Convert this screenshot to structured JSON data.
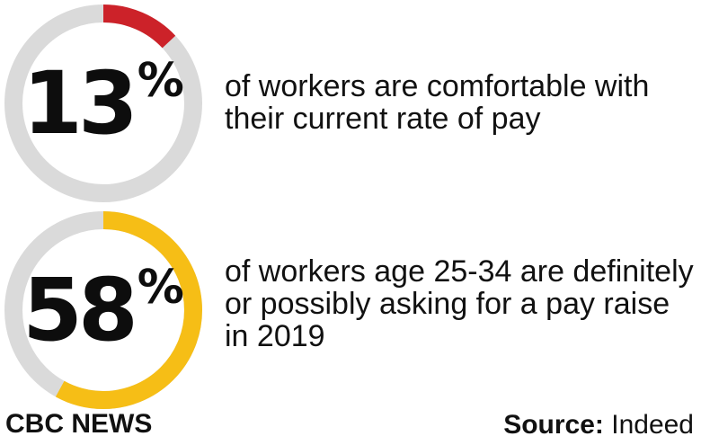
{
  "chart_data": [
    {
      "type": "pie",
      "value_percent": 13,
      "value_text": "13",
      "percent_symbol": "%",
      "caption": "of workers are comfortable with their current rate of pay",
      "colors": {
        "value": "#cc2229",
        "remainder": "#dadada"
      }
    },
    {
      "type": "pie",
      "value_percent": 58,
      "value_text": "58",
      "percent_symbol": "%",
      "caption": "of workers age 25-34 are definitely or possibly asking for a pay raise in 2019",
      "colors": {
        "value": "#f6be16",
        "remainder": "#dadada"
      }
    }
  ],
  "footer": {
    "brand": "CBC NEWS",
    "source_label": "Source:",
    "source_value": "Indeed"
  }
}
